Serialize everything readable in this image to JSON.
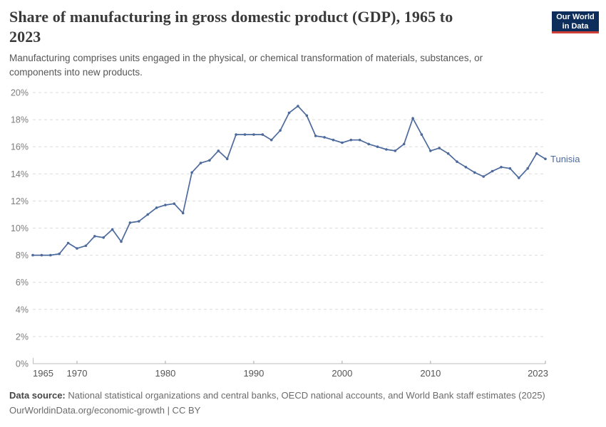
{
  "header": {
    "title": "Share of manufacturing in gross domestic product (GDP), 1965 to\n2023",
    "subtitle": "Manufacturing comprises units engaged in the physical, or chemical transformation of materials, substances, or\ncomponents into new products.",
    "logo": {
      "line1": "Our World",
      "line2": "in Data"
    }
  },
  "colors": {
    "line": "#4c6a9c",
    "gridline": "#dcdcdc",
    "axis_line": "#bdbdbd",
    "y_tick_label": "#7d7d7d",
    "x_tick_label": "#555555",
    "title_text": "#3a3a3a",
    "subtitle_text": "#565656",
    "footer_text": "#6b6b6b",
    "logo_background": "#0d2e5a",
    "logo_stripe": "#cf3f36"
  },
  "chart_data": {
    "type": "line",
    "title": "Share of manufacturing in gross domestic product (GDP), 1965 to 2023",
    "xlabel": "",
    "ylabel": "",
    "ylim": [
      0,
      20
    ],
    "ytick_step": 2,
    "ytick_suffix": "%",
    "xlim": [
      1965,
      2023
    ],
    "xticks": [
      1965,
      1970,
      1980,
      1990,
      2000,
      2010,
      2023
    ],
    "grid": "dashed-horizontal",
    "legend_position": "end-of-line",
    "years": [
      1965,
      1966,
      1967,
      1968,
      1969,
      1970,
      1971,
      1972,
      1973,
      1974,
      1975,
      1976,
      1977,
      1978,
      1979,
      1980,
      1981,
      1982,
      1983,
      1984,
      1985,
      1986,
      1987,
      1988,
      1989,
      1990,
      1991,
      1992,
      1993,
      1994,
      1995,
      1996,
      1997,
      1998,
      1999,
      2000,
      2001,
      2002,
      2003,
      2004,
      2005,
      2006,
      2007,
      2008,
      2009,
      2010,
      2011,
      2012,
      2013,
      2014,
      2015,
      2016,
      2017,
      2018,
      2019,
      2020,
      2021,
      2022,
      2023
    ],
    "series": [
      {
        "name": "Tunisia",
        "color": "#4c6a9c",
        "values": [
          8.0,
          8.0,
          8.0,
          8.1,
          8.9,
          8.5,
          8.7,
          9.4,
          9.3,
          9.9,
          9.0,
          10.4,
          10.5,
          11.0,
          11.5,
          11.7,
          11.8,
          11.1,
          14.1,
          14.8,
          15.0,
          15.7,
          15.1,
          16.9,
          16.9,
          16.9,
          16.9,
          16.5,
          17.2,
          18.5,
          19.0,
          18.3,
          16.8,
          16.7,
          16.5,
          16.3,
          16.5,
          16.5,
          16.2,
          16.0,
          15.8,
          15.7,
          16.2,
          18.1,
          16.9,
          15.7,
          15.9,
          15.5,
          14.9,
          14.5,
          14.1,
          13.8,
          14.2,
          14.5,
          14.4,
          13.7,
          14.4,
          15.5,
          15.1
        ]
      }
    ]
  },
  "footer": {
    "source_label": "Data source:",
    "source_text": "National statistical organizations and central banks, OECD national accounts, and World Bank staff estimates (2025)",
    "license_line": "OurWorldinData.org/economic-growth | CC BY"
  }
}
